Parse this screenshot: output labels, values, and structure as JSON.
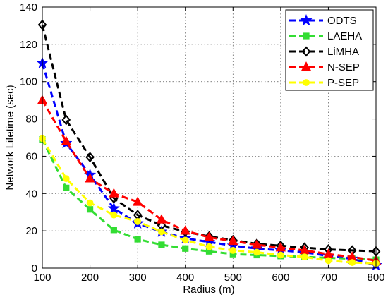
{
  "chart_data": {
    "type": "line",
    "xlabel": "Radius (m)",
    "ylabel": "Network Lifetime (sec)",
    "xlim": [
      100,
      800
    ],
    "ylim": [
      0,
      140
    ],
    "x_ticks": [
      100,
      200,
      300,
      400,
      500,
      600,
      700,
      800
    ],
    "y_ticks": [
      0,
      20,
      40,
      60,
      80,
      100,
      120,
      140
    ],
    "grid": true,
    "legend_position": "top-right",
    "series": [
      {
        "name": "ODTS",
        "color": "#0000ff",
        "marker": "star",
        "x": [
          100,
          150,
          200,
          250,
          300,
          350,
          400,
          450,
          500,
          550,
          600,
          650,
          700,
          750,
          800
        ],
        "y": [
          110,
          67,
          50,
          32,
          24,
          19.5,
          16,
          14,
          12,
          10.5,
          9.5,
          8.5,
          6.5,
          5,
          1.5
        ]
      },
      {
        "name": "LAEHA",
        "color": "#33dd33",
        "marker": "square",
        "x": [
          100,
          150,
          200,
          250,
          300,
          350,
          400,
          450,
          500,
          550,
          600,
          650,
          700,
          750,
          800
        ],
        "y": [
          69,
          43,
          31.5,
          20.5,
          15.5,
          12.5,
          10.5,
          9,
          7.5,
          7,
          6.5,
          6,
          5.5,
          5,
          4.5
        ]
      },
      {
        "name": "LiMHA",
        "color": "#000000",
        "marker": "diamond",
        "x": [
          100,
          150,
          200,
          250,
          300,
          350,
          400,
          450,
          500,
          550,
          600,
          650,
          700,
          750,
          800
        ],
        "y": [
          130.5,
          79.5,
          59.5,
          37.5,
          28.5,
          23,
          19.5,
          17,
          15,
          13,
          12,
          11,
          10,
          9.5,
          9
        ]
      },
      {
        "name": "N-SEP",
        "color": "#ff0000",
        "marker": "triangle",
        "x": [
          100,
          150,
          200,
          250,
          300,
          350,
          400,
          450,
          500,
          550,
          600,
          650,
          700,
          750,
          800
        ],
        "y": [
          90,
          68,
          48,
          40,
          35.5,
          26,
          20,
          16.5,
          14.5,
          12.5,
          11,
          9.5,
          7.5,
          6,
          4
        ]
      },
      {
        "name": "P-SEP",
        "color": "#ffff00",
        "marker": "circle",
        "x": [
          100,
          150,
          200,
          250,
          300,
          350,
          400,
          450,
          500,
          550,
          600,
          650,
          700,
          750,
          800
        ],
        "y": [
          69.5,
          48,
          35,
          28.5,
          25,
          19.5,
          15,
          11.5,
          9.5,
          8.5,
          7,
          6,
          4,
          3,
          2.5
        ]
      }
    ]
  }
}
